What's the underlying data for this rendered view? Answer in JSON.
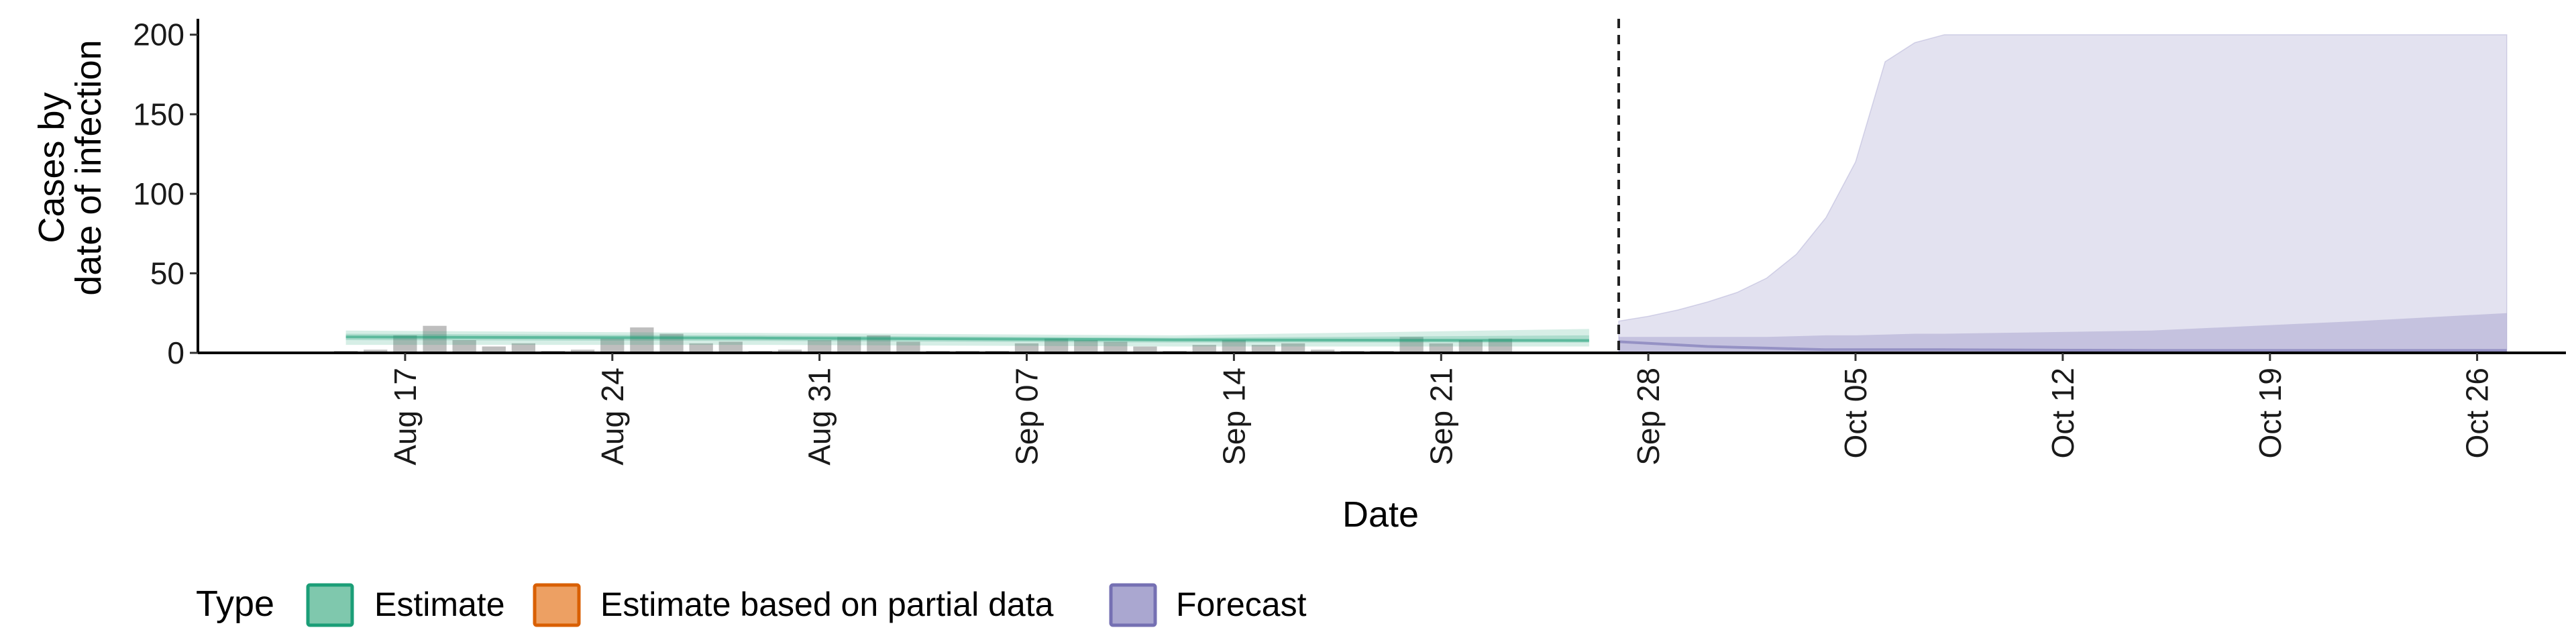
{
  "chart_data": {
    "type": "area",
    "title": "",
    "xlabel": "Date",
    "ylabel_lines": [
      "Cases by",
      "date of infection"
    ],
    "ylim": [
      0,
      210
    ],
    "y_ticks": [
      0,
      50,
      100,
      150,
      200
    ],
    "x_range": [
      "2020-08-10",
      "2020-10-29"
    ],
    "x_ticks": [
      {
        "date": "2020-08-17",
        "label": "Aug 17"
      },
      {
        "date": "2020-08-24",
        "label": "Aug 24"
      },
      {
        "date": "2020-08-31",
        "label": "Aug 31"
      },
      {
        "date": "2020-09-07",
        "label": "Sep 07"
      },
      {
        "date": "2020-09-14",
        "label": "Sep 14"
      },
      {
        "date": "2020-09-21",
        "label": "Sep 21"
      },
      {
        "date": "2020-09-28",
        "label": "Sep 28"
      },
      {
        "date": "2020-10-05",
        "label": "Oct 05"
      },
      {
        "date": "2020-10-12",
        "label": "Oct 12"
      },
      {
        "date": "2020-10-19",
        "label": "Oct 19"
      },
      {
        "date": "2020-10-26",
        "label": "Oct 26"
      }
    ],
    "forecast_start": "2020-09-27",
    "grid": false,
    "legend": {
      "title": "Type",
      "position": "bottom-left",
      "entries": [
        {
          "label": "Estimate",
          "fill": "#7fc8ad",
          "stroke": "#1b9e77"
        },
        {
          "label": "Estimate based on partial data",
          "fill": "#eda063",
          "stroke": "#d95f02"
        },
        {
          "label": "Forecast",
          "fill": "#aaa7d0",
          "stroke": "#7570b3"
        }
      ]
    },
    "observed_cases": {
      "start": "2020-08-15",
      "color": "#b3b3b3",
      "values": [
        1,
        2,
        11,
        17,
        8,
        4,
        6,
        0,
        2,
        9,
        16,
        12,
        6,
        7,
        0,
        2,
        8,
        10,
        11,
        7,
        1,
        1,
        0,
        6,
        9,
        8,
        7,
        4,
        0,
        5,
        8,
        5,
        6,
        2,
        1,
        0,
        10,
        6,
        8,
        9
      ]
    },
    "estimate": {
      "start": "2020-08-15",
      "end": "2020-09-26",
      "color": "#1b9e77",
      "median": [
        10,
        9.3,
        8.2,
        7.8
      ],
      "outer_lower": [
        5,
        5,
        4,
        4
      ],
      "outer_upper": [
        14,
        12.5,
        11,
        15
      ],
      "inner_lower": [
        8,
        7.5,
        6.5,
        6.5
      ],
      "inner_upper": [
        12,
        11,
        9.5,
        11
      ]
    },
    "forecast": {
      "dates": [
        "2020-09-27",
        "2020-09-28",
        "2020-09-29",
        "2020-09-30",
        "2020-10-01",
        "2020-10-02",
        "2020-10-03",
        "2020-10-04",
        "2020-10-05",
        "2020-10-06",
        "2020-10-07",
        "2020-10-08",
        "2020-10-15",
        "2020-10-22",
        "2020-10-27"
      ],
      "color": "#7570b3",
      "outer_upper": [
        20,
        23,
        27,
        32,
        38,
        47,
        62,
        85,
        120,
        183,
        195,
        200,
        200,
        200,
        200
      ],
      "outer_lower": [
        0,
        0,
        0,
        0,
        0,
        0,
        0,
        0,
        0,
        0,
        0,
        0,
        0,
        0,
        0
      ],
      "inner_upper": [
        10,
        10,
        10,
        10,
        10,
        10,
        10.5,
        11,
        11,
        11.5,
        12,
        12,
        14,
        20,
        25
      ],
      "inner_lower": [
        4,
        3,
        2.5,
        2,
        1.5,
        1,
        1,
        1,
        0.5,
        0.5,
        0.5,
        0.5,
        0,
        0,
        0
      ],
      "median": [
        7,
        6,
        5,
        4,
        3.5,
        3,
        2.5,
        2,
        2,
        2,
        2,
        2,
        1.5,
        1.5,
        1.5
      ]
    }
  }
}
